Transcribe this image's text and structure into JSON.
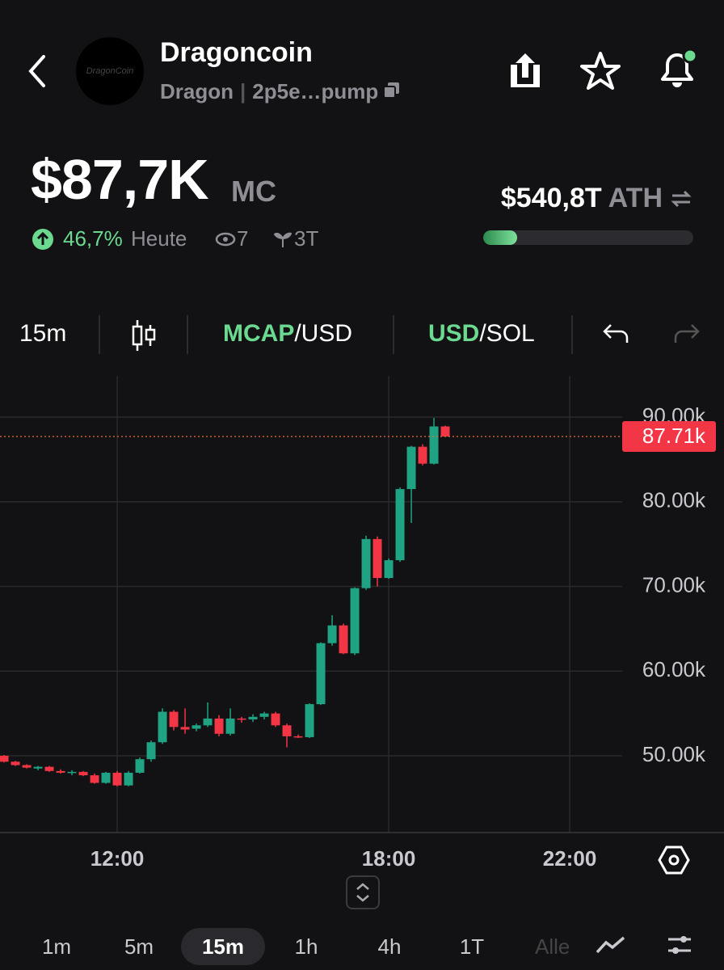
{
  "header": {
    "title": "Dragoncoin",
    "logo_text": "DragonCoin",
    "symbol": "Dragon",
    "address": "2p5e…pump"
  },
  "stats": {
    "market_cap": "$87,7K",
    "market_cap_unit": "MC",
    "change": "46,7%",
    "change_period": "Heute",
    "views": "7",
    "holders": "3T",
    "ath": "$540,8T",
    "ath_label": "ATH",
    "ath_progress": 16
  },
  "toolbar": {
    "interval": "15m",
    "mode_a_active": "MCAP",
    "mode_a_rest": "/USD",
    "mode_b_active": "USD",
    "mode_b_rest": "/SOL"
  },
  "timeframes": {
    "items": [
      "1m",
      "5m",
      "15m",
      "1h",
      "4h",
      "1T",
      "Alle"
    ],
    "selected": 2
  },
  "chart_data": {
    "type": "candlestick",
    "x": [
      9.5,
      9.75,
      10,
      10.25,
      10.5,
      10.75,
      11,
      11.25,
      11.5,
      11.75,
      12,
      12.25,
      12.5,
      12.75,
      13,
      13.25,
      13.5,
      13.75,
      14,
      14.25,
      14.5,
      14.75,
      15,
      15.25,
      15.5,
      15.75,
      16,
      16.25,
      16.5,
      16.75,
      17,
      17.25,
      17.5,
      17.75,
      18,
      18.25,
      18.5,
      18.75,
      19,
      19.25
    ],
    "open": [
      50000,
      49300,
      48900,
      48500,
      48700,
      48200,
      48000,
      48100,
      47700,
      46800,
      48000,
      46500,
      48000,
      49600,
      51600,
      55200,
      53400,
      53200,
      53600,
      54400,
      52600,
      54400,
      54300,
      54600,
      55000,
      53600,
      52300,
      52200,
      56100,
      63300,
      65400,
      62100,
      69800,
      75600,
      71000,
      73100,
      81500,
      86500,
      84500,
      88900
    ],
    "high": [
      50100,
      49400,
      49000,
      48800,
      48800,
      48400,
      48300,
      48200,
      47900,
      48100,
      48200,
      48200,
      49800,
      51800,
      55600,
      55400,
      55600,
      53800,
      56300,
      54800,
      55600,
      54600,
      54900,
      55200,
      55200,
      53800,
      52500,
      56200,
      63400,
      66600,
      65600,
      69900,
      76000,
      75900,
      73300,
      81700,
      86600,
      86800,
      89900,
      89000
    ],
    "low": [
      49200,
      48800,
      48500,
      48300,
      48100,
      47900,
      47700,
      47600,
      46700,
      46700,
      46400,
      46400,
      47900,
      49300,
      51400,
      53000,
      52600,
      52900,
      53400,
      52300,
      52400,
      53900,
      54000,
      54300,
      53400,
      51000,
      52100,
      52100,
      56000,
      63000,
      62000,
      61900,
      69600,
      70000,
      70900,
      72900,
      77500,
      84300,
      84400,
      87700
    ],
    "close": [
      49300,
      48900,
      48600,
      48700,
      48200,
      48000,
      48100,
      47700,
      46800,
      48000,
      46500,
      48000,
      49600,
      51600,
      55200,
      53400,
      53100,
      53600,
      54400,
      52600,
      54400,
      54300,
      54600,
      55000,
      53600,
      52300,
      52200,
      56100,
      63300,
      65400,
      62100,
      69800,
      75600,
      71000,
      73100,
      81500,
      86500,
      84500,
      88900,
      87710
    ],
    "up_color": "#1fa383",
    "down_color": "#f23645",
    "last_price": {
      "value": 87710,
      "label": "87.71k"
    },
    "last_price_color": "#e8703a",
    "xlim": [
      9.41,
      23.16
    ],
    "ylim": [
      40930,
      94870
    ],
    "xticks": [
      {
        "value": 12,
        "label": "12:00"
      },
      {
        "value": 18,
        "label": "18:00"
      },
      {
        "value": 22,
        "label": "22:00"
      }
    ],
    "yticks": [
      {
        "value": 50000,
        "label": "50.00k"
      },
      {
        "value": 60000,
        "label": "60.00k"
      },
      {
        "value": 70000,
        "label": "70.00k"
      },
      {
        "value": 80000,
        "label": "80.00k"
      },
      {
        "value": 90000,
        "label": "90.00k"
      }
    ],
    "grid": true
  }
}
